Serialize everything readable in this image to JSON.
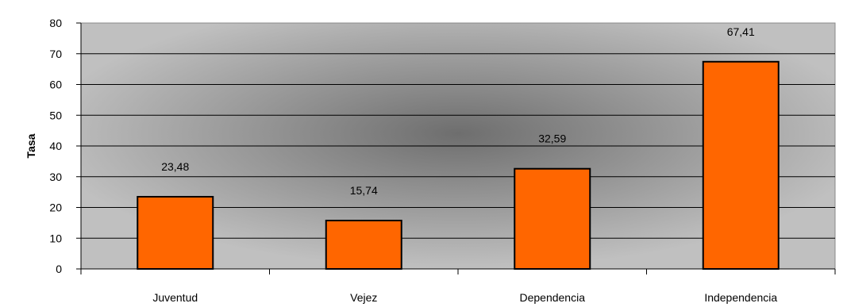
{
  "chart_data": {
    "type": "bar",
    "title": "",
    "xlabel": "",
    "ylabel": "Tasa",
    "categories": [
      "Juventud",
      "Vejez",
      "Dependencia",
      "Independencia"
    ],
    "values": [
      23.48,
      15.74,
      32.59,
      67.41
    ],
    "data_labels": [
      "23,48",
      "15,74",
      "32,59",
      "67,41"
    ],
    "ylim": [
      0,
      80
    ],
    "yticks": [
      "0",
      "10",
      "20",
      "30",
      "40",
      "50",
      "60",
      "70",
      "80"
    ],
    "grid": true,
    "legend": "none",
    "colors": {
      "bar_fill": "#ff6600",
      "bar_stroke": "#000000",
      "plot_gradient_center": "#6e6e6e",
      "plot_gradient_edge": "#c0c0c0"
    }
  }
}
